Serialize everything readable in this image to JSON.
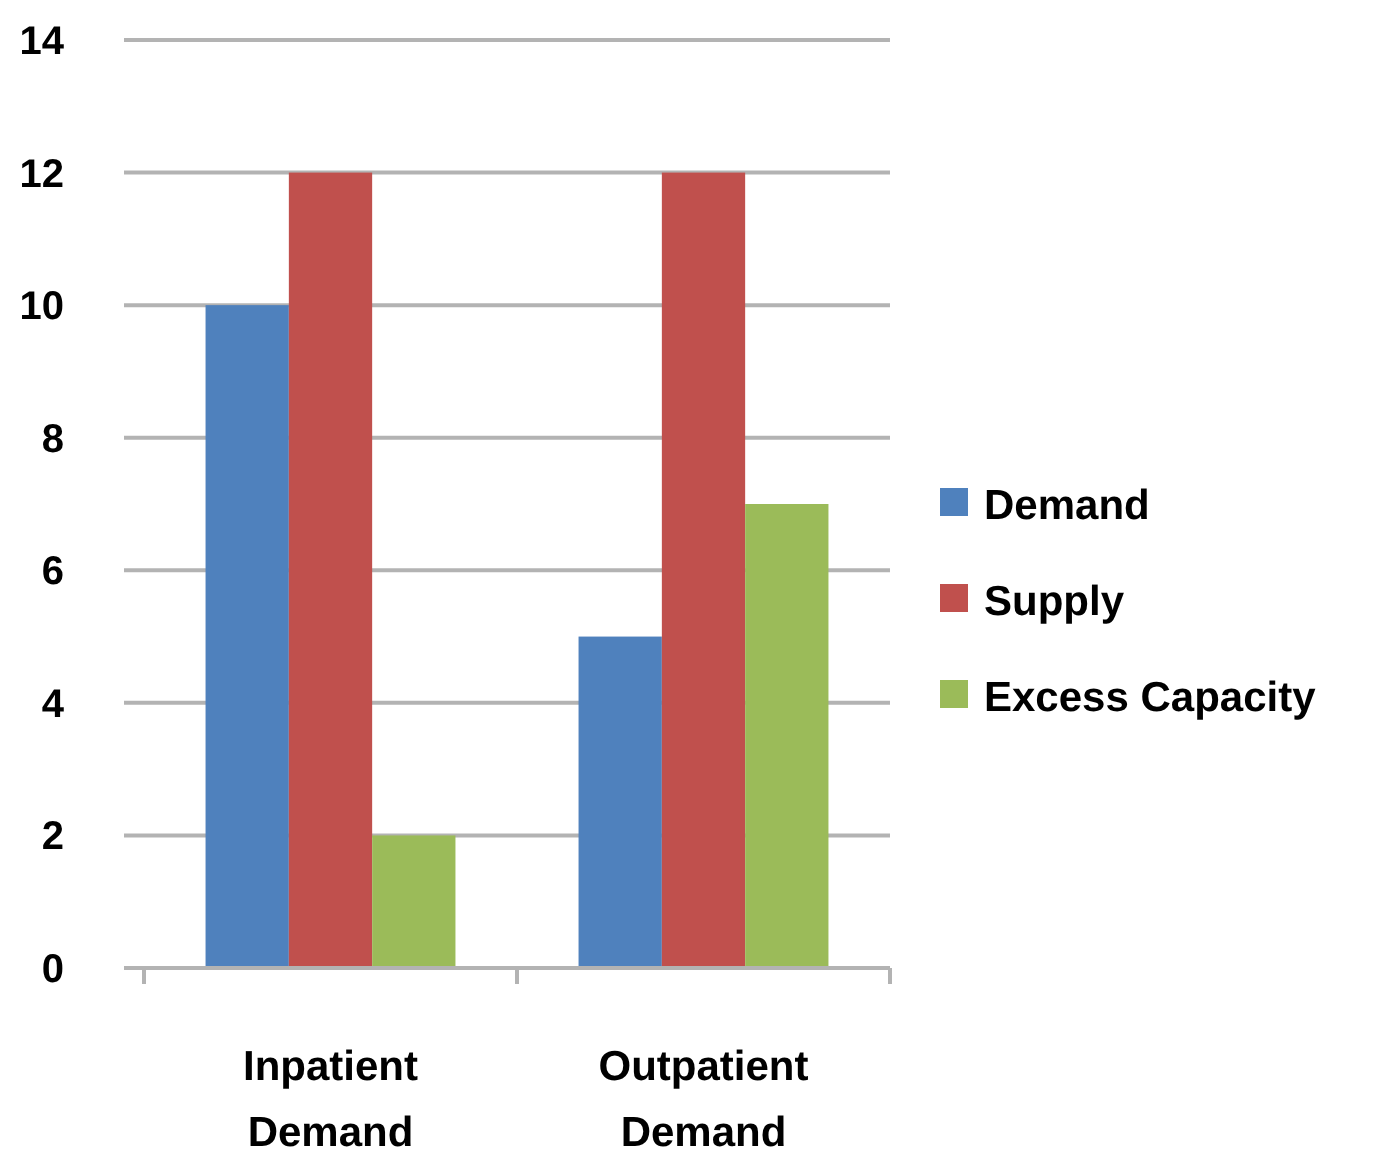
{
  "chart_data": {
    "type": "bar",
    "categories": [
      "Inpatient Demand",
      "Outpatient Demand"
    ],
    "series": [
      {
        "name": "Demand",
        "color": "#4f81bd",
        "values": [
          10,
          5
        ]
      },
      {
        "name": "Supply",
        "color": "#c0504d",
        "values": [
          12,
          12
        ]
      },
      {
        "name": "Excess Capacity",
        "color": "#9bbb59",
        "values": [
          2,
          7
        ]
      }
    ],
    "ylim": [
      0,
      14
    ],
    "yticks": [
      0,
      2,
      4,
      6,
      8,
      10,
      12,
      14
    ],
    "grid": "y",
    "legend": "right"
  }
}
